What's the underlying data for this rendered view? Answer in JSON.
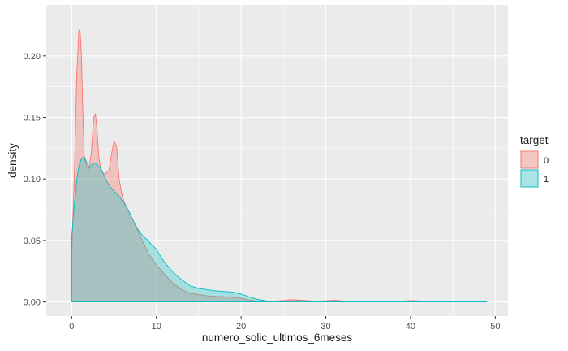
{
  "chart_data": {
    "type": "area",
    "xlabel": "numero_solic_ultimos_6meses",
    "ylabel": "density",
    "xlim": [
      -3.0,
      51.5
    ],
    "ylim": [
      -0.0115,
      0.2415
    ],
    "x_ticks": [
      0,
      10,
      20,
      30,
      40,
      50
    ],
    "x_tick_labels": [
      "0",
      "10",
      "20",
      "30",
      "40",
      "50"
    ],
    "y_ticks": [
      0.0,
      0.05,
      0.1,
      0.15,
      0.2
    ],
    "y_tick_labels": [
      "0.00",
      "0.05",
      "0.10",
      "0.15",
      "0.20"
    ],
    "grid": true,
    "legend": {
      "title": "target",
      "position": "right"
    },
    "series": [
      {
        "name": "0",
        "stroke": "#F8766D",
        "fill": "#F8766D",
        "fill_opacity": 0.35,
        "x": [
          0.0,
          0.3,
          0.6,
          0.85,
          1.0,
          1.15,
          1.3,
          1.5,
          1.8,
          2.0,
          2.3,
          2.6,
          2.8,
          3.0,
          3.2,
          3.5,
          3.8,
          4.1,
          4.4,
          4.7,
          5.0,
          5.3,
          5.6,
          6.0,
          6.5,
          7.0,
          8.0,
          9.0,
          10.0,
          11.0,
          12.0,
          13.0,
          14.0,
          15.0,
          16.0,
          17.0,
          18.0,
          19.0,
          20.0,
          21.0,
          22.0,
          23.0,
          25.0,
          26.0,
          27.0,
          28.0,
          29.0,
          30.0,
          31.0,
          32.0,
          33.0,
          35.0,
          37.0,
          38.0,
          39.0,
          40.0,
          41.0,
          42.0,
          44.0,
          46.0,
          49.0
        ],
        "y": [
          0.038,
          0.1,
          0.185,
          0.221,
          0.22,
          0.2,
          0.16,
          0.117,
          0.11,
          0.108,
          0.12,
          0.15,
          0.153,
          0.14,
          0.118,
          0.106,
          0.104,
          0.105,
          0.107,
          0.12,
          0.131,
          0.127,
          0.1,
          0.085,
          0.077,
          0.07,
          0.055,
          0.04,
          0.03,
          0.022,
          0.015,
          0.01,
          0.007,
          0.006,
          0.005,
          0.0045,
          0.0042,
          0.0038,
          0.003,
          0.0015,
          0.0007,
          0.0004,
          0.0012,
          0.0018,
          0.0015,
          0.001,
          0.0005,
          0.001,
          0.0014,
          0.0008,
          0.0003,
          0.0004,
          0.0003,
          0.0002,
          0.0006,
          0.0012,
          0.0008,
          0.0003,
          0.0002,
          0.0001,
          0.0001
        ]
      },
      {
        "name": "1",
        "stroke": "#00BFC4",
        "fill": "#00BFC4",
        "fill_opacity": 0.3,
        "x": [
          0.0,
          0.3,
          0.6,
          0.9,
          1.2,
          1.5,
          1.8,
          2.1,
          2.4,
          2.7,
          3.0,
          3.5,
          4.0,
          4.5,
          5.0,
          5.5,
          6.0,
          6.5,
          7.0,
          7.5,
          8.0,
          8.5,
          9.0,
          9.5,
          10.0,
          10.5,
          11.0,
          12.0,
          13.0,
          14.0,
          15.0,
          16.0,
          17.0,
          18.0,
          19.0,
          20.0,
          21.0,
          22.0,
          23.0,
          25.0,
          27.0,
          28.0,
          30.0,
          32.0,
          35.0,
          38.0,
          40.0,
          42.0,
          45.0,
          49.0
        ],
        "y": [
          0.053,
          0.078,
          0.1,
          0.112,
          0.117,
          0.118,
          0.113,
          0.109,
          0.112,
          0.113,
          0.112,
          0.108,
          0.1,
          0.094,
          0.09,
          0.087,
          0.082,
          0.077,
          0.07,
          0.063,
          0.057,
          0.053,
          0.05,
          0.046,
          0.043,
          0.037,
          0.032,
          0.024,
          0.018,
          0.013,
          0.011,
          0.01,
          0.009,
          0.0085,
          0.008,
          0.0065,
          0.004,
          0.002,
          0.0008,
          0.0006,
          0.0009,
          0.0007,
          0.0004,
          0.0003,
          0.0002,
          0.0002,
          0.0004,
          0.0002,
          0.0001,
          0.0001
        ]
      }
    ]
  }
}
